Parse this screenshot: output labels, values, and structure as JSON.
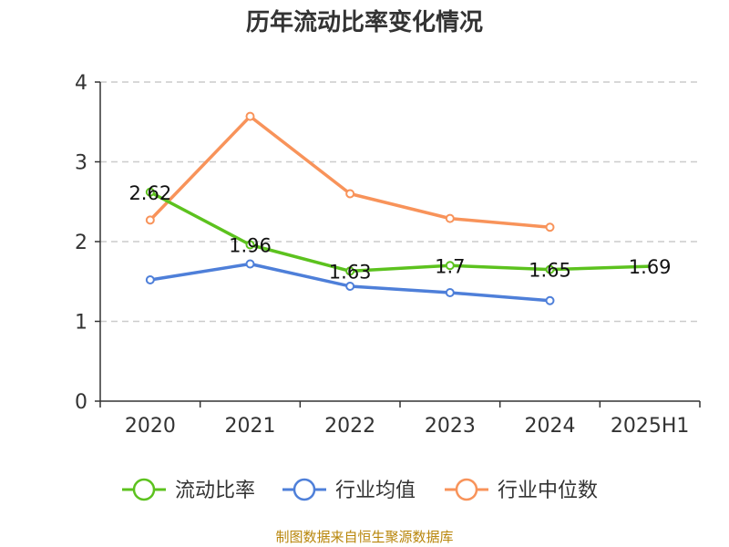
{
  "chart_data": {
    "type": "line",
    "title": "历年流动比率变化情况",
    "categories": [
      "2020",
      "2021",
      "2022",
      "2023",
      "2024",
      "2025H1"
    ],
    "ylim": [
      0,
      4
    ],
    "yticks": [
      0,
      1,
      2,
      3,
      4
    ],
    "grid": true,
    "legend_position": "bottom",
    "series": [
      {
        "name": "流动比率",
        "color": "#5cc21e",
        "values": [
          2.62,
          1.96,
          1.63,
          1.7,
          1.65,
          1.69
        ],
        "labels": [
          "2.62",
          "1.96",
          "1.63",
          "1.7",
          "1.65",
          "1.69"
        ]
      },
      {
        "name": "行业均值",
        "color": "#4e7fd9",
        "values": [
          1.52,
          1.72,
          1.44,
          1.36,
          1.26,
          null
        ]
      },
      {
        "name": "行业中位数",
        "color": "#f8935a",
        "values": [
          2.27,
          3.57,
          2.6,
          2.29,
          2.18,
          null
        ]
      }
    ]
  },
  "source": "制图数据来自恒生聚源数据库"
}
